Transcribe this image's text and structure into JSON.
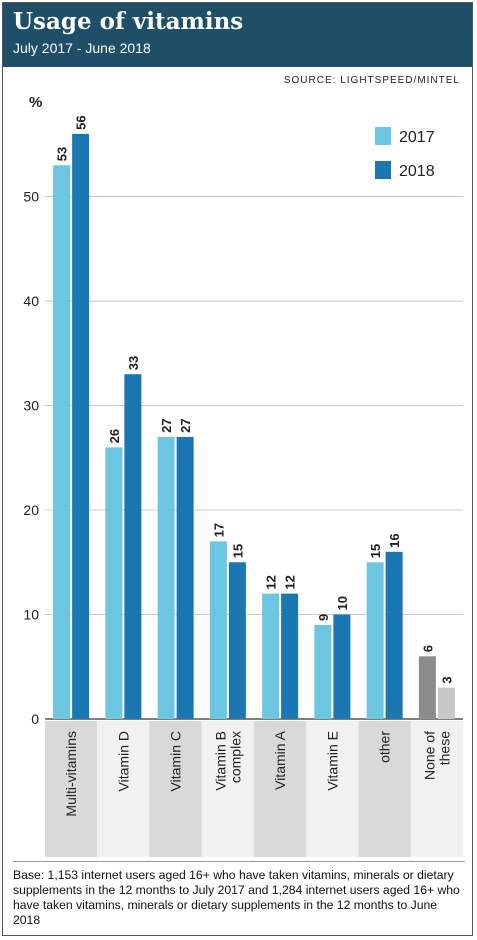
{
  "header": {
    "title": "Usage of vitamins",
    "subtitle": "July 2017 - June 2018"
  },
  "source": "SOURCE: LIGHTSPEED/MINTEL",
  "footnote": "Base: 1,153 internet users aged 16+ who have taken vitamins, minerals or dietary supplements in the 12 months to July 2017 and 1,284 internet users aged 16+ who have taken vitamins, minerals or dietary supplements in the 12 months to June 2018",
  "colors": {
    "series_2017": "#6cc6e2",
    "series_2018": "#1a77b2",
    "none_2017": "#8c8c8c",
    "none_2018": "#c8c8c8",
    "header_bg": "#1f4f68",
    "label_band_dark": "#d9d9d9",
    "label_band_light": "#f1f1f1"
  },
  "chart_data": {
    "type": "bar",
    "ylabel": "%",
    "ylim": [
      0,
      58
    ],
    "yticks": [
      0,
      10,
      20,
      30,
      40,
      50
    ],
    "grid": true,
    "legend_position": "top-right",
    "categories": [
      "Multi-vitamins",
      "Vitamin D",
      "Vitamin C",
      "Vitamin B complex",
      "Vitamin A",
      "Vitamin E",
      "other",
      "None of these"
    ],
    "series": [
      {
        "name": "2017",
        "values": [
          53,
          26,
          27,
          17,
          12,
          9,
          15,
          6
        ]
      },
      {
        "name": "2018",
        "values": [
          56,
          33,
          27,
          15,
          12,
          10,
          16,
          3
        ]
      }
    ]
  }
}
